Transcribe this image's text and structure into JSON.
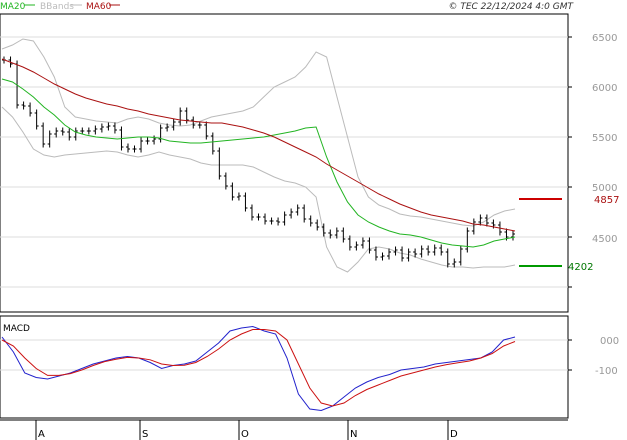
{
  "legend": {
    "ma20": {
      "label": "MA20",
      "color": "#22b422"
    },
    "bbands": {
      "label": "BBands",
      "color": "#bbbbbb"
    },
    "ma60": {
      "label": "MA60",
      "color": "#aa1111"
    }
  },
  "copyright": "© TEC 22/12/2024 4:0 GMT",
  "macd_label": "MACD",
  "price_axis": {
    "ticks": [
      "6500",
      "6000",
      "5500",
      "5000",
      "4500"
    ]
  },
  "macd_axis": {
    "ticks": [
      "000",
      "-100"
    ]
  },
  "markers": [
    {
      "label": "4857",
      "color": "#cc0000",
      "text_color": "#aa1111"
    },
    {
      "label": "4202",
      "color": "#009900",
      "text_color": "#007700"
    }
  ],
  "months": [
    "A",
    "S",
    "O",
    "N",
    "D"
  ],
  "chart_data": [
    {
      "type": "line",
      "title": "",
      "x_labels": [
        "A",
        "S",
        "O",
        "N",
        "D"
      ],
      "ylim": [
        4000,
        6700
      ],
      "series": [
        {
          "name": "MA20",
          "color": "#22b422",
          "values": [
            6080,
            6050,
            5980,
            5900,
            5800,
            5720,
            5620,
            5550,
            5520,
            5500,
            5490,
            5480,
            5490,
            5500,
            5500,
            5490,
            5460,
            5450,
            5440,
            5440,
            5450,
            5460,
            5470,
            5480,
            5490,
            5500,
            5520,
            5540,
            5560,
            5590,
            5600,
            5300,
            5050,
            4850,
            4720,
            4650,
            4600,
            4560,
            4530,
            4520,
            4500,
            4470,
            4440,
            4420,
            4410,
            4400,
            4420,
            4460,
            4480,
            4500
          ]
        },
        {
          "name": "MA60",
          "color": "#aa1111",
          "values": [
            6280,
            6240,
            6200,
            6150,
            6090,
            6030,
            5980,
            5930,
            5890,
            5860,
            5830,
            5810,
            5780,
            5760,
            5730,
            5710,
            5690,
            5670,
            5660,
            5650,
            5640,
            5640,
            5620,
            5600,
            5570,
            5540,
            5500,
            5450,
            5400,
            5350,
            5300,
            5230,
            5170,
            5110,
            5050,
            4990,
            4930,
            4880,
            4830,
            4790,
            4750,
            4720,
            4700,
            4680,
            4660,
            4630,
            4620,
            4600,
            4580,
            4560
          ]
        },
        {
          "name": "BBands upper",
          "color": "#bbbbbb",
          "values": [
            6380,
            6420,
            6480,
            6460,
            6300,
            6100,
            5800,
            5700,
            5680,
            5660,
            5650,
            5640,
            5680,
            5700,
            5680,
            5640,
            5620,
            5610,
            5620,
            5660,
            5700,
            5720,
            5740,
            5760,
            5800,
            5900,
            6000,
            6050,
            6100,
            6200,
            6350,
            6300,
            5900,
            5500,
            5100,
            4900,
            4820,
            4780,
            4730,
            4710,
            4700,
            4680,
            4660,
            4640,
            4620,
            4610,
            4650,
            4720,
            4760,
            4780
          ]
        },
        {
          "name": "BBands lower",
          "color": "#bbbbbb",
          "values": [
            5800,
            5700,
            5550,
            5380,
            5320,
            5300,
            5320,
            5330,
            5340,
            5350,
            5360,
            5350,
            5320,
            5300,
            5320,
            5350,
            5320,
            5300,
            5280,
            5240,
            5220,
            5220,
            5220,
            5220,
            5200,
            5150,
            5100,
            5060,
            5040,
            5000,
            4900,
            4400,
            4200,
            4150,
            4250,
            4380,
            4400,
            4380,
            4340,
            4320,
            4280,
            4250,
            4220,
            4200,
            4200,
            4190,
            4200,
            4200,
            4200,
            4220
          ]
        }
      ],
      "candles": {
        "start": "2024-07-26",
        "step_days": 2,
        "close": [
          6270,
          6230,
          5820,
          5810,
          5740,
          5610,
          5430,
          5530,
          5560,
          5550,
          5500,
          5560,
          5560,
          5560,
          5580,
          5600,
          5610,
          5570,
          5400,
          5380,
          5380,
          5460,
          5460,
          5480,
          5590,
          5600,
          5650,
          5760,
          5670,
          5620,
          5620,
          5510,
          5360,
          5110,
          5010,
          4900,
          4910,
          4790,
          4700,
          4700,
          4660,
          4660,
          4650,
          4720,
          4750,
          4790,
          4680,
          4640,
          4600,
          4540,
          4520,
          4560,
          4480,
          4400,
          4420,
          4460,
          4370,
          4300,
          4310,
          4350,
          4370,
          4290,
          4350,
          4330,
          4380,
          4350,
          4390,
          4350,
          4230,
          4250,
          4380,
          4560,
          4650,
          4690,
          4640,
          4620,
          4550,
          4500,
          4530
        ]
      }
    },
    {
      "type": "line",
      "title": "MACD",
      "ylim": [
        -250,
        60
      ],
      "series": [
        {
          "name": "MACD",
          "color": "#2222cc",
          "values": [
            10,
            -40,
            -110,
            -125,
            -130,
            -120,
            -110,
            -95,
            -80,
            -70,
            -60,
            -55,
            -60,
            -75,
            -95,
            -85,
            -80,
            -70,
            -40,
            -10,
            30,
            40,
            45,
            30,
            20,
            -60,
            -180,
            -230,
            -235,
            -220,
            -190,
            -160,
            -140,
            -125,
            -115,
            -100,
            -95,
            -90,
            -80,
            -75,
            -70,
            -65,
            -60,
            -40,
            0,
            10
          ]
        },
        {
          "name": "Signal",
          "color": "#cc1111",
          "values": [
            0,
            -20,
            -60,
            -95,
            -118,
            -118,
            -112,
            -100,
            -85,
            -72,
            -64,
            -58,
            -60,
            -66,
            -80,
            -85,
            -84,
            -75,
            -55,
            -30,
            0,
            20,
            35,
            35,
            30,
            0,
            -80,
            -160,
            -210,
            -220,
            -210,
            -185,
            -165,
            -150,
            -135,
            -120,
            -110,
            -100,
            -90,
            -82,
            -76,
            -70,
            -60,
            -45,
            -20,
            -5
          ]
        }
      ]
    }
  ]
}
